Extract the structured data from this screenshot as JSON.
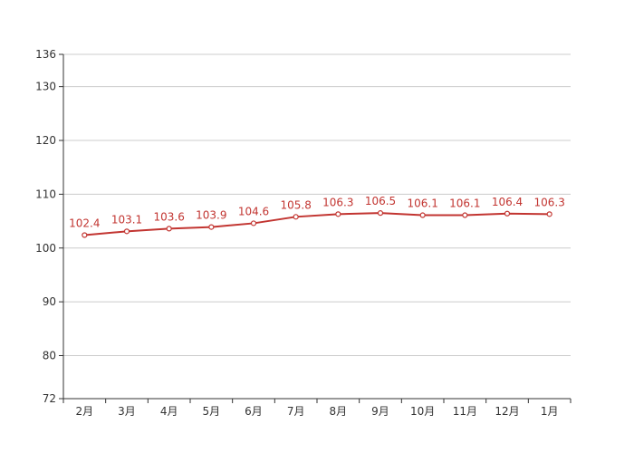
{
  "chart_data": {
    "type": "line",
    "title": "",
    "xlabel": "",
    "ylabel": "",
    "categories": [
      "2月",
      "3月",
      "4月",
      "5月",
      "6月",
      "7月",
      "8月",
      "9月",
      "10月",
      "11月",
      "12月",
      "1月"
    ],
    "series": [
      {
        "values": [
          102.4,
          103.1,
          103.6,
          103.9,
          104.6,
          105.8,
          106.3,
          106.5,
          106.1,
          106.1,
          106.4,
          106.3
        ],
        "labels": [
          "102.4",
          "103.1",
          "103.6",
          "103.9",
          "104.6",
          "105.8",
          "106.3",
          "106.5",
          "106.1",
          "106.1",
          "106.4",
          "106.3"
        ]
      }
    ],
    "ylim": [
      72,
      136
    ],
    "yticks": [
      72,
      80,
      90,
      100,
      110,
      120,
      130,
      136
    ],
    "ytick_labels": [
      "72",
      "80",
      "90",
      "100",
      "110",
      "120",
      "130",
      "136"
    ],
    "grid": true,
    "legend": "none",
    "colors": {
      "line": "#c23531",
      "label": "#c23531",
      "grid": "#cccccc",
      "axis": "#333333",
      "marker_fill": "#ffffff"
    }
  }
}
